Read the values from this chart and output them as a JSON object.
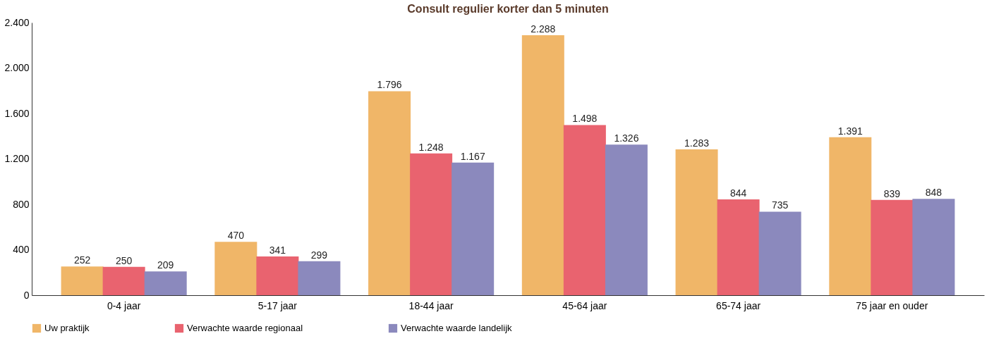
{
  "chart_data": {
    "type": "bar",
    "title": "Consult regulier korter dan 5 minuten",
    "categories": [
      "0-4 jaar",
      "5-17 jaar",
      "18-44 jaar",
      "45-64 jaar",
      "65-74 jaar",
      "75 jaar en ouder"
    ],
    "series": [
      {
        "name": "Uw praktijk",
        "color": "#f0b668",
        "values": [
          252,
          470,
          1796,
          2288,
          1283,
          1391
        ],
        "value_labels": [
          "252",
          "470",
          "1.796",
          "2.288",
          "1.283",
          "1.391"
        ]
      },
      {
        "name": "Verwachte waarde regionaal",
        "color": "#e9636f",
        "values": [
          250,
          341,
          1248,
          1498,
          844,
          839
        ],
        "value_labels": [
          "250",
          "341",
          "1.248",
          "1.498",
          "844",
          "839"
        ]
      },
      {
        "name": "Verwachte waarde landelijk",
        "color": "#8b89bd",
        "values": [
          209,
          299,
          1167,
          1326,
          735,
          848
        ],
        "value_labels": [
          "209",
          "299",
          "1.167",
          "1.326",
          "735",
          "848"
        ]
      }
    ],
    "ylim": [
      0,
      2400
    ],
    "yticks": [
      0,
      {
        "value": 400,
        "label": "400"
      },
      {
        "value": 800,
        "label": "800"
      },
      {
        "value": 1200,
        "label": "1.200"
      },
      {
        "value": 1600,
        "label": "1.600"
      },
      {
        "value": 2000,
        "label": "2.000"
      },
      {
        "value": 2400,
        "label": "2.400"
      }
    ],
    "grid": false,
    "legend": "bottom"
  }
}
